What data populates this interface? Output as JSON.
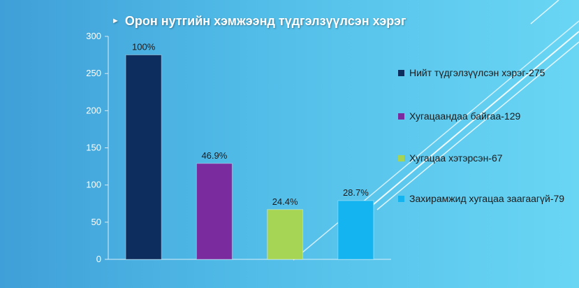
{
  "slide": {
    "title": "Орон нутгийн хэмжээнд түдгэлзүүлсэн хэрэг",
    "title_arrow_icon": "triangle-right-icon"
  },
  "chart_data": {
    "type": "bar",
    "categories": [
      "Нийт түдгэлзүүлсэн хэрэг-275",
      "Хугацаандаа байгаа-129",
      "Хугацаа хэтэрсэн-67",
      "Захирамжид хугацаа заагаагүй-79"
    ],
    "values": [
      275,
      129,
      67,
      79
    ],
    "data_labels": [
      "100%",
      "46.9%",
      "24.4%",
      "28.7%"
    ],
    "colors": [
      "#0c2d5e",
      "#7a2c9e",
      "#a6d454",
      "#13b4f0"
    ],
    "ylim": [
      0,
      300
    ],
    "yticks": [
      0,
      50,
      100,
      150,
      200,
      250,
      300
    ],
    "grid": false,
    "legend_position": "right",
    "legend": [
      "Нийт түдгэлзүүлсэн хэрэг-275",
      "Хугацаандаа байгаа-129",
      "Хугацаа хэтэрсэн-67",
      "Захирамжид хугацаа заагаагүй-79"
    ]
  }
}
